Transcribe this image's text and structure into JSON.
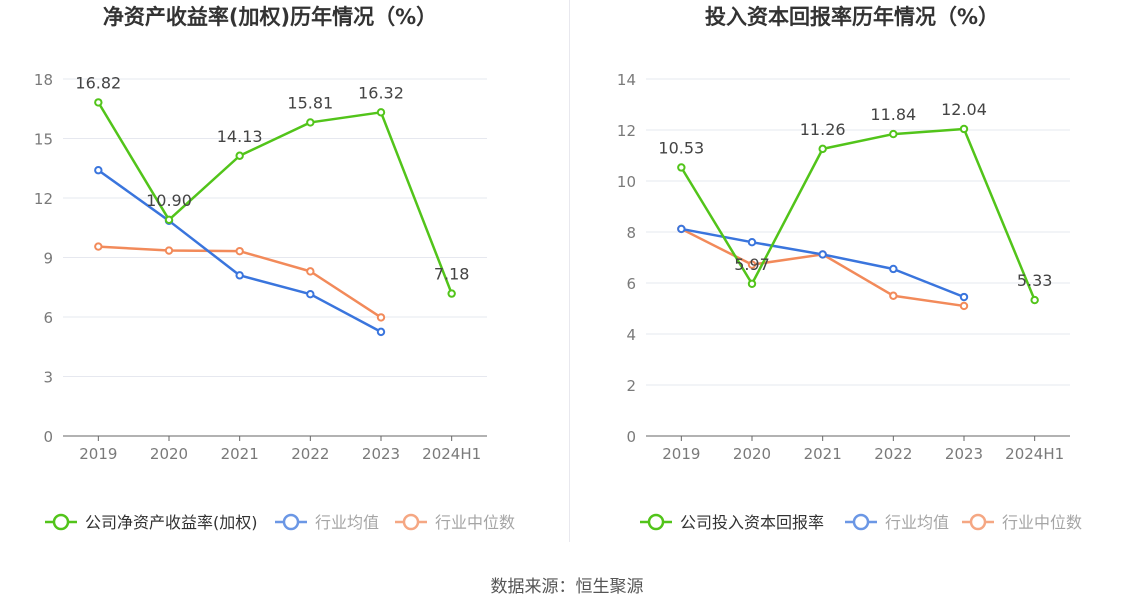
{
  "source": "数据来源：恒生聚源",
  "chart_data": [
    {
      "type": "line",
      "title": "净资产收益率(加权)历年情况（%）",
      "categories": [
        "2019",
        "2020",
        "2021",
        "2022",
        "2023",
        "2024H1"
      ],
      "ylim": [
        0,
        18
      ],
      "yticks": [
        0,
        3,
        6,
        9,
        12,
        15,
        18
      ],
      "grid": true,
      "legend_position": "bottom",
      "series": [
        {
          "name": "公司净资产收益率(加权)",
          "color": "#52c41a",
          "values": [
            16.82,
            10.9,
            14.13,
            15.81,
            16.32,
            7.18
          ],
          "labels": [
            "16.82",
            "10.90",
            "14.13",
            "15.81",
            "16.32",
            "7.18"
          ],
          "show_labels": true
        },
        {
          "name": "行业均值",
          "color": "#3a75dd",
          "values": [
            13.4,
            10.85,
            8.1,
            7.15,
            5.25,
            null
          ],
          "show_labels": false
        },
        {
          "name": "行业中位数",
          "color": "#f28a5a",
          "values": [
            9.55,
            9.35,
            9.32,
            8.3,
            5.98,
            null
          ],
          "show_labels": false
        }
      ]
    },
    {
      "type": "line",
      "title": "投入资本回报率历年情况（%）",
      "categories": [
        "2019",
        "2020",
        "2021",
        "2022",
        "2023",
        "2024H1"
      ],
      "ylim": [
        0,
        14
      ],
      "yticks": [
        0,
        2,
        4,
        6,
        8,
        10,
        12,
        14
      ],
      "grid": true,
      "legend_position": "bottom",
      "series": [
        {
          "name": "公司投入资本回报率",
          "color": "#52c41a",
          "values": [
            10.53,
            5.97,
            11.26,
            11.84,
            12.04,
            5.33
          ],
          "labels": [
            "10.53",
            "5.97",
            "11.26",
            "11.84",
            "12.04",
            "5.33"
          ],
          "show_labels": true
        },
        {
          "name": "行业均值",
          "color": "#3a75dd",
          "values": [
            8.12,
            7.6,
            7.12,
            6.55,
            5.45,
            null
          ],
          "show_labels": false
        },
        {
          "name": "行业中位数",
          "color": "#f28a5a",
          "values": [
            8.12,
            6.72,
            7.12,
            5.5,
            5.1,
            null
          ],
          "show_labels": false
        }
      ]
    }
  ]
}
